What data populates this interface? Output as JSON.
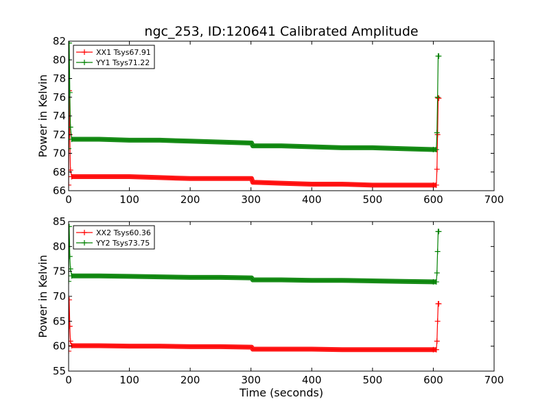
{
  "title": "ngc_253, ID:120641 Calibrated Amplitude",
  "xlabel": "Time (seconds)",
  "colors": {
    "xx": "#ff0000",
    "yy": "#008000"
  },
  "chart_data": [
    {
      "type": "line",
      "title": "ngc_253, ID:120641 Calibrated Amplitude",
      "xlabel": "",
      "ylabel": "Power in Kelvin",
      "xlim": [
        0,
        700
      ],
      "ylim": [
        66,
        82
      ],
      "xticks": [
        0,
        100,
        200,
        300,
        400,
        500,
        600,
        700
      ],
      "yticks": [
        66,
        68,
        70,
        72,
        74,
        76,
        78,
        80,
        82
      ],
      "grid": false,
      "legend_position": "top-left",
      "series": [
        {
          "name": "XX1 Tsys67.91",
          "color": "#ff0000",
          "x": [
            0,
            1,
            2,
            3,
            5,
            50,
            100,
            150,
            200,
            250,
            300,
            301,
            303,
            350,
            400,
            450,
            500,
            550,
            600,
            605,
            606,
            607,
            608,
            609
          ],
          "y": [
            66.6,
            76.7,
            72.0,
            68.2,
            67.5,
            67.5,
            67.5,
            67.4,
            67.3,
            67.3,
            67.3,
            67.3,
            66.9,
            66.8,
            66.7,
            66.7,
            66.6,
            66.6,
            66.6,
            66.6,
            68.3,
            72.0,
            75.9,
            75.9
          ]
        },
        {
          "name": "YY1 Tsys71.22",
          "color": "#008000",
          "x": [
            0,
            1,
            2,
            3,
            5,
            50,
            100,
            150,
            200,
            250,
            300,
            301,
            303,
            350,
            400,
            450,
            500,
            550,
            600,
            605,
            606,
            607,
            608,
            609
          ],
          "y": [
            70.5,
            81.8,
            76.5,
            72.8,
            71.5,
            71.5,
            71.4,
            71.4,
            71.3,
            71.2,
            71.1,
            71.1,
            70.8,
            70.8,
            70.7,
            70.6,
            70.6,
            70.5,
            70.4,
            70.4,
            72.2,
            76.0,
            80.4,
            80.4
          ]
        }
      ]
    },
    {
      "type": "line",
      "title": "",
      "xlabel": "Time (seconds)",
      "ylabel": "Power in Kelvin",
      "xlim": [
        0,
        700
      ],
      "ylim": [
        55,
        85
      ],
      "xticks": [
        0,
        100,
        200,
        300,
        400,
        500,
        600,
        700
      ],
      "yticks": [
        55,
        60,
        65,
        70,
        75,
        80,
        85
      ],
      "grid": false,
      "legend_position": "top-left",
      "series": [
        {
          "name": "XX2 Tsys60.36",
          "color": "#ff0000",
          "x": [
            0,
            1,
            2,
            3,
            5,
            50,
            100,
            150,
            200,
            250,
            300,
            301,
            303,
            350,
            400,
            450,
            500,
            550,
            600,
            605,
            606,
            607,
            608,
            609
          ],
          "y": [
            59.0,
            69.3,
            64.0,
            61.0,
            60.1,
            60.1,
            60.0,
            60.0,
            59.9,
            59.9,
            59.8,
            59.8,
            59.4,
            59.4,
            59.4,
            59.3,
            59.3,
            59.3,
            59.3,
            59.3,
            61.0,
            65.0,
            68.5,
            68.5
          ]
        },
        {
          "name": "YY2 Tsys73.75",
          "color": "#008000",
          "x": [
            0,
            1,
            2,
            3,
            5,
            50,
            100,
            150,
            200,
            250,
            300,
            301,
            303,
            350,
            400,
            450,
            500,
            550,
            600,
            605,
            606,
            607,
            608,
            609
          ],
          "y": [
            73.0,
            84.0,
            78.0,
            75.5,
            74.1,
            74.1,
            74.0,
            73.9,
            73.8,
            73.8,
            73.7,
            73.7,
            73.3,
            73.3,
            73.2,
            73.2,
            73.1,
            73.0,
            72.9,
            72.9,
            74.7,
            79.0,
            83.0,
            83.0
          ]
        }
      ]
    }
  ]
}
